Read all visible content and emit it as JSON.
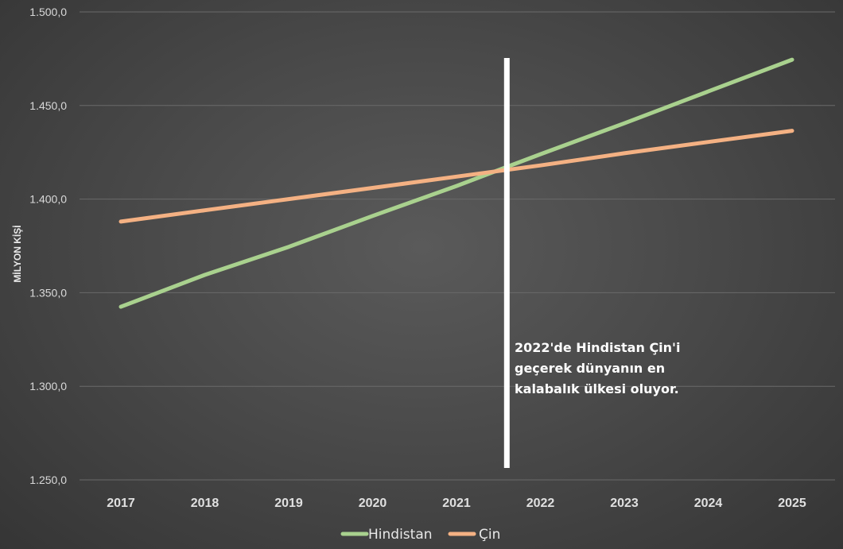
{
  "chart_data": {
    "type": "line",
    "title": "",
    "xlabel": "",
    "ylabel": "MİLYON KİŞİ",
    "x": [
      "2017",
      "2018",
      "2019",
      "2020",
      "2021",
      "2022",
      "2023",
      "2024",
      "2025"
    ],
    "ylim": [
      1250,
      1500
    ],
    "yticks": [
      1250,
      1300,
      1350,
      1400,
      1450,
      1500
    ],
    "ytick_labels": [
      "1.250,0",
      "1.300,0",
      "1.350,0",
      "1.400,0",
      "1.450,0",
      "1.500,0"
    ],
    "grid": true,
    "legend_position": "bottom",
    "series": [
      {
        "name": "Hindistan",
        "color": "#a9d18e",
        "values": [
          1342.5,
          1359.5,
          1374.5,
          1391.0,
          1407.0,
          1424.0,
          1440.5,
          1457.5,
          1474.5
        ]
      },
      {
        "name": "Çin",
        "color": "#f4b183",
        "values": [
          1388.0,
          1394.0,
          1400.0,
          1406.0,
          1412.0,
          1418.0,
          1424.5,
          1430.5,
          1436.5
        ]
      }
    ],
    "marker_x": 2021.6,
    "marker_color": "#ffffff",
    "annotation": [
      "2022'de Hindistan Çin'i",
      "geçerek dünyanın en",
      "kalabalık ülkesi oluyor."
    ]
  }
}
